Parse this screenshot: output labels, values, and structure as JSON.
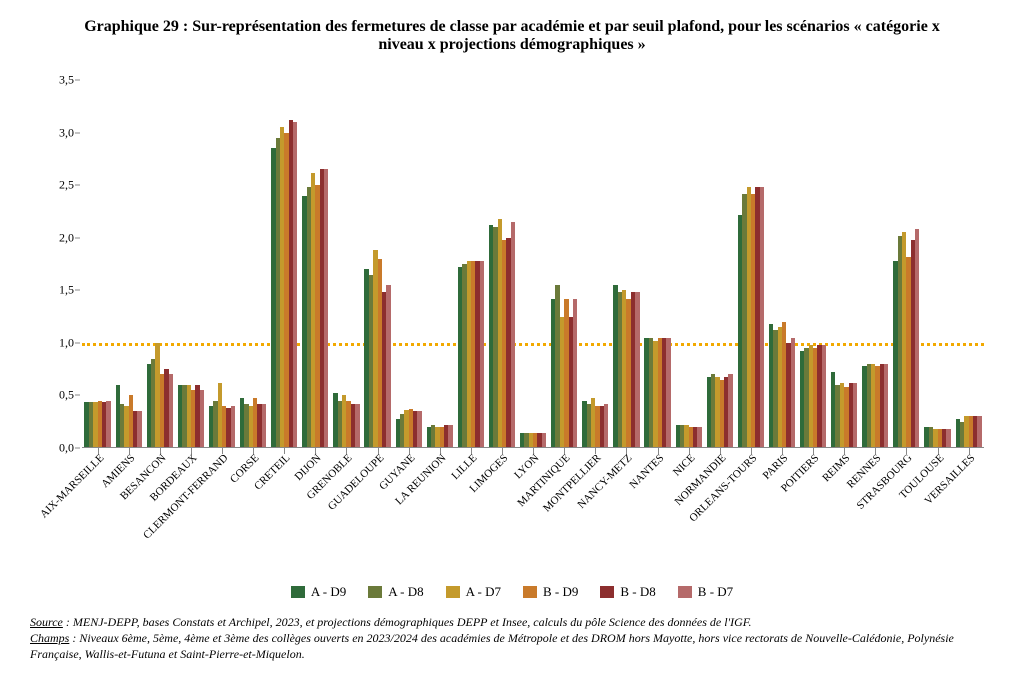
{
  "title": "Graphique 29 : Sur-représentation des fermetures de classe par académie et par seuil plafond, pour les scénarios « catégorie x niveau x projections démographiques »",
  "chart": {
    "type": "bar",
    "ymin": 0.0,
    "ymax": 3.5,
    "ytick_step": 0.5,
    "yticks_labels": [
      "0,0",
      "0,5",
      "1,0",
      "1,5",
      "2,0",
      "2,5",
      "3,0",
      "3,5"
    ],
    "reference_line": {
      "value": 1.0,
      "color": "#f2a900",
      "width": 3,
      "style": "dotted"
    },
    "background_color": "#ffffff",
    "axis_color": "#888888",
    "label_fontsize": 11,
    "tick_fontsize": 12,
    "series": [
      {
        "name": "A - D9",
        "color": "#2f6b3a"
      },
      {
        "name": "A - D8",
        "color": "#6b7a3a"
      },
      {
        "name": "A - D7",
        "color": "#c49a2c"
      },
      {
        "name": "B - D9",
        "color": "#c97a2a"
      },
      {
        "name": "B - D8",
        "color": "#8c2e2e"
      },
      {
        "name": "B - D7",
        "color": "#b56a6a"
      }
    ],
    "categories": [
      "AIX-MARSEILLE",
      "AMIENS",
      "BESANCON",
      "BORDEAUX",
      "CLERMONT-FERRAND",
      "CORSE",
      "CRETEIL",
      "DIJON",
      "GRENOBLE",
      "GUADELOUPE",
      "GUYANE",
      "LA REUNION",
      "LILLE",
      "LIMOGES",
      "LYON",
      "MARTINIQUE",
      "MONTPELLIER",
      "NANCY-METZ",
      "NANTES",
      "NICE",
      "NORMANDIE",
      "ORLEANS-TOURS",
      "PARIS",
      "POITIERS",
      "REIMS",
      "RENNES",
      "STRASBOURG",
      "TOULOUSE",
      "VERSAILLES"
    ],
    "values": [
      [
        0.44,
        0.44,
        0.44,
        0.45,
        0.44,
        0.45
      ],
      [
        0.6,
        0.42,
        0.4,
        0.5,
        0.35,
        0.35
      ],
      [
        0.8,
        0.85,
        1.0,
        0.7,
        0.75,
        0.7
      ],
      [
        0.6,
        0.6,
        0.6,
        0.55,
        0.6,
        0.55
      ],
      [
        0.4,
        0.45,
        0.62,
        0.4,
        0.38,
        0.4
      ],
      [
        0.48,
        0.42,
        0.4,
        0.48,
        0.42,
        0.42
      ],
      [
        2.85,
        2.95,
        3.05,
        3.0,
        3.12,
        3.1
      ],
      [
        2.4,
        2.48,
        2.62,
        2.5,
        2.65,
        2.65
      ],
      [
        0.52,
        0.45,
        0.5,
        0.45,
        0.42,
        0.42
      ],
      [
        1.7,
        1.65,
        1.88,
        1.8,
        1.48,
        1.55
      ],
      [
        0.28,
        0.32,
        0.36,
        0.37,
        0.35,
        0.35
      ],
      [
        0.2,
        0.22,
        0.2,
        0.2,
        0.22,
        0.22
      ],
      [
        1.72,
        1.75,
        1.78,
        1.78,
        1.78,
        1.78
      ],
      [
        2.12,
        2.1,
        2.18,
        1.98,
        2.0,
        2.15
      ],
      [
        0.14,
        0.14,
        0.14,
        0.14,
        0.14,
        0.14
      ],
      [
        1.42,
        1.55,
        1.25,
        1.42,
        1.25,
        1.42
      ],
      [
        0.45,
        0.42,
        0.48,
        0.4,
        0.4,
        0.42
      ],
      [
        1.55,
        1.48,
        1.5,
        1.42,
        1.48,
        1.48
      ],
      [
        1.05,
        1.05,
        1.02,
        1.05,
        1.05,
        1.05
      ],
      [
        0.22,
        0.22,
        0.22,
        0.2,
        0.2,
        0.2
      ],
      [
        0.68,
        0.7,
        0.68,
        0.65,
        0.68,
        0.7
      ],
      [
        2.22,
        2.42,
        2.48,
        2.42,
        2.48,
        2.48
      ],
      [
        1.18,
        1.12,
        1.15,
        1.2,
        1.0,
        1.05
      ],
      [
        0.92,
        0.95,
        0.98,
        0.95,
        0.98,
        0.98
      ],
      [
        0.72,
        0.6,
        0.62,
        0.58,
        0.62,
        0.62
      ],
      [
        0.78,
        0.8,
        0.8,
        0.78,
        0.8,
        0.8
      ],
      [
        1.78,
        2.02,
        2.05,
        1.82,
        1.98,
        2.08
      ],
      [
        0.2,
        0.2,
        0.18,
        0.18,
        0.18,
        0.18
      ],
      [
        0.28,
        0.25,
        0.3,
        0.3,
        0.3,
        0.3
      ]
    ]
  },
  "footnotes": {
    "source_label": "Source",
    "source_text": " : MENJ-DEPP, bases Constats et Archipel, 2023, et projections démographiques DEPP et Insee, calculs du pôle Science des données de l'IGF.",
    "champs_label": "Champs",
    "champs_text": " : Niveaux 6ème, 5ème, 4ème et 3ème des collèges ouverts en 2023/2024 des académies de Métropole et des DROM hors Mayotte, hors vice rectorats de Nouvelle-Calédonie, Polynésie Française, Wallis-et-Futuna et Saint-Pierre-et-Miquelon."
  }
}
